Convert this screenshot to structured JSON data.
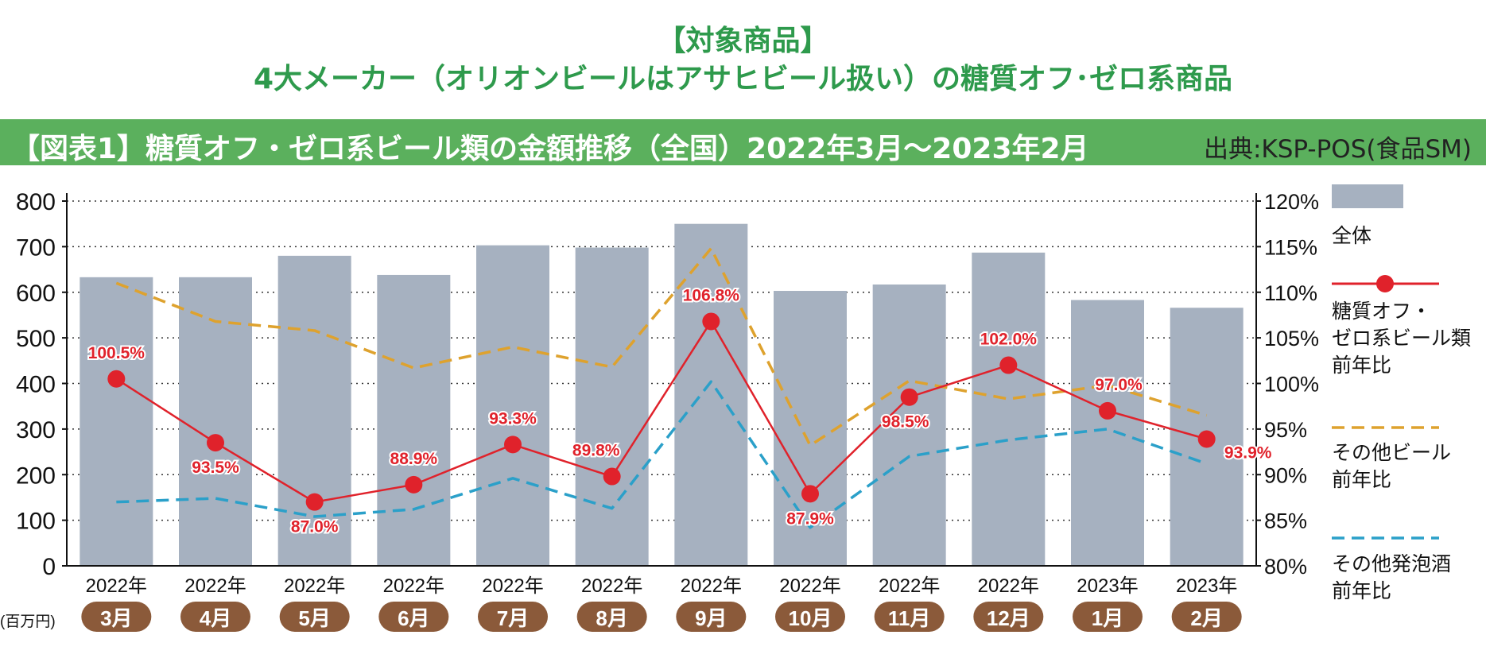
{
  "header": {
    "line1": "【対象商品】",
    "line2": "4大メーカー（オリオンビールはアサヒビール扱い）の糖質オフ･ゼロ系商品"
  },
  "banner": {
    "title": "【図表1】糖質オフ・ゼロ系ビール類の金額推移（全国）2022年3月～2023年2月",
    "source": "出典:KSP-POS(食品SM)"
  },
  "colors": {
    "bar": "#a6b1c0",
    "sugar_off": "#e0222b",
    "other_beer": "#dea22e",
    "other_happoshu": "#2ba0c9",
    "month_pill": "#8b5a3a",
    "banner": "#5bb05d",
    "header_text": "#2e9a4c"
  },
  "chart_data": {
    "type": "bar+line",
    "categories": [
      "2022年 3月",
      "2022年 4月",
      "2022年 5月",
      "2022年 6月",
      "2022年 7月",
      "2022年 8月",
      "2022年 9月",
      "2022年 10月",
      "2022年 11月",
      "2022年 12月",
      "2023年 1月",
      "2023年 2月"
    ],
    "x_years": [
      "2022年",
      "2022年",
      "2022年",
      "2022年",
      "2022年",
      "2022年",
      "2022年",
      "2022年",
      "2022年",
      "2022年",
      "2023年",
      "2023年"
    ],
    "x_months": [
      "3月",
      "4月",
      "5月",
      "6月",
      "7月",
      "8月",
      "9月",
      "10月",
      "11月",
      "12月",
      "1月",
      "2月"
    ],
    "left_axis": {
      "unit": "(百万円)",
      "ylim": [
        0,
        800
      ],
      "ticks": [
        "0",
        "100",
        "200",
        "300",
        "400",
        "500",
        "600",
        "700",
        "800"
      ]
    },
    "right_axis": {
      "ylim": [
        80,
        120
      ],
      "ticks": [
        "80%",
        "85%",
        "90%",
        "95%",
        "100%",
        "105%",
        "110%",
        "115%",
        "120%"
      ]
    },
    "grid": "dotted horizontal",
    "legend_position": "right",
    "series": [
      {
        "name": "全体",
        "kind": "bar",
        "axis": "left",
        "values": [
          633,
          633,
          680,
          638,
          703,
          698,
          750,
          603,
          617,
          687,
          583,
          566
        ]
      },
      {
        "name": "糖質オフ・ゼロ系ビール類前年比",
        "kind": "line-marker",
        "axis": "right",
        "values": [
          100.5,
          93.5,
          87.0,
          88.9,
          93.3,
          89.8,
          106.8,
          87.9,
          98.5,
          102.0,
          97.0,
          93.9
        ],
        "labels": [
          "100.5%",
          "93.5%",
          "87.0%",
          "88.9%",
          "93.3%",
          "89.8%",
          "106.8%",
          "87.9%",
          "98.5%",
          "102.0%",
          "97.0%",
          "93.9%"
        ]
      },
      {
        "name": "その他ビール前年比",
        "kind": "dashed",
        "axis": "right",
        "values": [
          111.0,
          106.8,
          105.8,
          101.7,
          104.0,
          101.8,
          114.8,
          93.2,
          100.3,
          98.3,
          99.8,
          96.5
        ]
      },
      {
        "name": "その他発泡酒前年比",
        "kind": "dashed",
        "axis": "right",
        "values": [
          87.0,
          87.4,
          85.4,
          86.2,
          89.6,
          86.3,
          100.2,
          84.2,
          92.0,
          93.8,
          95.0,
          91.2
        ]
      }
    ],
    "legend": [
      {
        "key": "bar",
        "lines": [
          "全体"
        ]
      },
      {
        "key": "sugar_off",
        "lines": [
          "糖質オフ・",
          "ゼロ系ビール類",
          "前年比"
        ]
      },
      {
        "key": "other_beer",
        "lines": [
          "その他ビール",
          "前年比"
        ]
      },
      {
        "key": "other_happoshu",
        "lines": [
          "その他発泡酒",
          "前年比"
        ]
      }
    ]
  }
}
